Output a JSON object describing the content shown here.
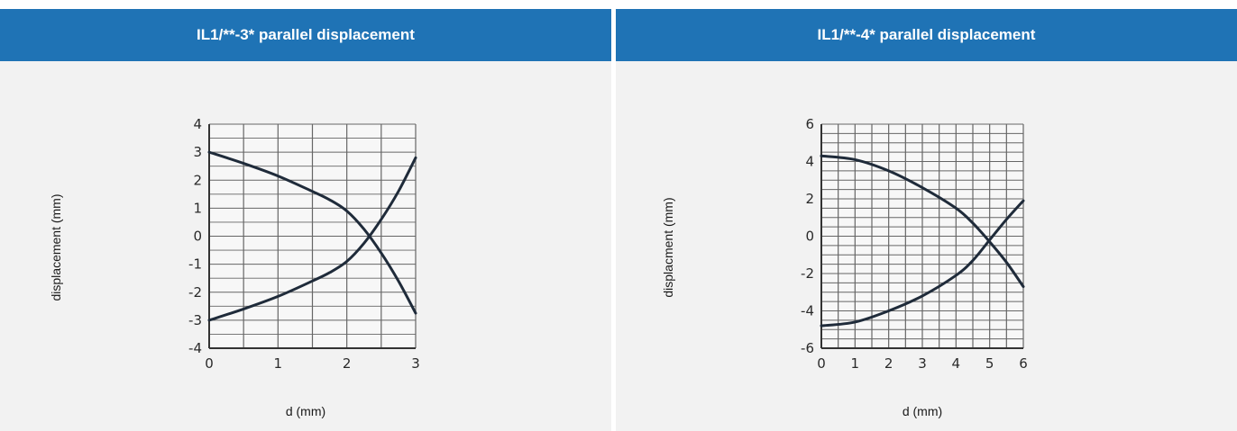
{
  "colors": {
    "header_bg": "#1f73b5",
    "panel_bg": "#f2f2f2",
    "curve": "#1f2b3a",
    "grid": "#666666"
  },
  "chart_data": [
    {
      "type": "line",
      "title": "IL1/**-3*  parallel displacement",
      "xlabel": "d (mm)",
      "ylabel": "displacement (mm)",
      "xlim": [
        0,
        3
      ],
      "ylim": [
        -4,
        4
      ],
      "xticks": [
        "0",
        "1",
        "2",
        "3"
      ],
      "yticks": [
        "4",
        "3",
        "2",
        "1",
        "0",
        "-1",
        "-2",
        "-3",
        "-4"
      ],
      "grid": true,
      "series": [
        {
          "x": [
            0,
            0.5,
            1.0,
            1.5,
            1.75,
            2.0,
            2.25,
            2.5,
            2.75,
            3.0
          ],
          "y": [
            3.0,
            2.6,
            2.15,
            1.6,
            1.3,
            0.9,
            0.25,
            -0.6,
            -1.6,
            -2.75
          ]
        },
        {
          "x": [
            0,
            0.5,
            1.0,
            1.5,
            1.75,
            2.0,
            2.25,
            2.5,
            2.75,
            3.0
          ],
          "y": [
            -3.0,
            -2.6,
            -2.15,
            -1.6,
            -1.3,
            -0.9,
            -0.25,
            0.6,
            1.6,
            2.8
          ]
        }
      ]
    },
    {
      "type": "line",
      "title": "IL1/**-4* parallel displacement",
      "xlabel": "d (mm)",
      "ylabel": "displacment (mm)",
      "xlim": [
        0,
        6
      ],
      "ylim": [
        -6,
        6
      ],
      "xticks": [
        "0",
        "1",
        "2",
        "3",
        "4",
        "5",
        "6"
      ],
      "yticks": [
        "6",
        "4",
        "2",
        "0",
        "-2",
        "-4",
        "-6"
      ],
      "grid": true,
      "series": [
        {
          "x": [
            0,
            1,
            2,
            3,
            4,
            4.5,
            5,
            5.5,
            6
          ],
          "y": [
            4.3,
            4.1,
            3.5,
            2.6,
            1.5,
            0.7,
            -0.3,
            -1.4,
            -2.7
          ]
        },
        {
          "x": [
            0,
            1,
            2,
            3,
            4,
            4.5,
            5,
            5.5,
            6
          ],
          "y": [
            -4.8,
            -4.6,
            -4.0,
            -3.2,
            -2.1,
            -1.3,
            -0.2,
            0.9,
            1.9
          ]
        }
      ]
    }
  ]
}
